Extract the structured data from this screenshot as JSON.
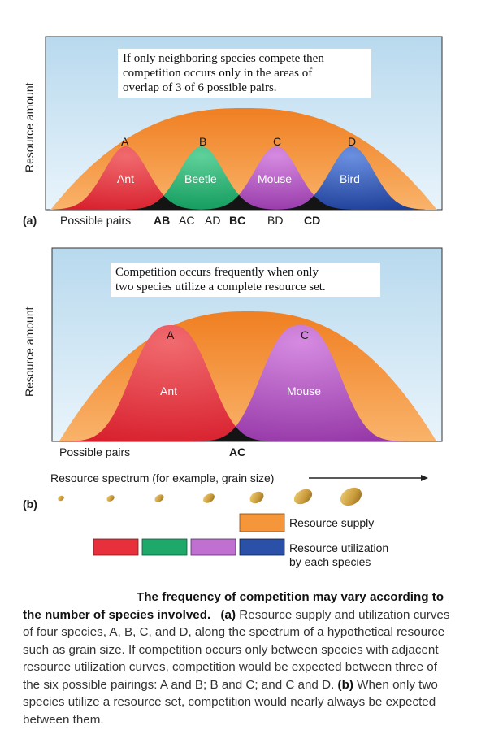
{
  "panel_a": {
    "ylabel": "Resource amount",
    "note_lines": [
      "If only neighboring species compete then",
      "competition occurs only in the areas of",
      "overlap of 3 of 6 possible pairs."
    ],
    "tag": "(a)",
    "pairs_label": "Possible pairs",
    "pairs": [
      "AB",
      "AC",
      "AD",
      "BC",
      "BD",
      "CD"
    ],
    "species": [
      {
        "letter": "A",
        "name": "Ant",
        "color": "#e8303c"
      },
      {
        "letter": "B",
        "name": "Beetle",
        "color": "#1ea86a"
      },
      {
        "letter": "C",
        "name": "Mouse",
        "color": "#a848b8"
      },
      {
        "letter": "D",
        "name": "Bird",
        "color": "#2a50a8"
      }
    ]
  },
  "panel_b": {
    "ylabel": "Resource amount",
    "note_lines": [
      "Competition occurs frequently when only",
      "two species utilize a complete resource set."
    ],
    "tag": "(b)",
    "pairs_label": "Possible pairs",
    "pair": "AC",
    "species": [
      {
        "letter": "A",
        "name": "Ant",
        "color": "#e8303c"
      },
      {
        "letter": "C",
        "name": "Mouse",
        "color": "#a848b8"
      }
    ],
    "spectrum_label": "Resource spectrum (for example, grain size)"
  },
  "legend": {
    "supply": "Resource supply",
    "utilization_lines": [
      "Resource utilization",
      "by each species"
    ],
    "supply_color": "#f5963a",
    "utilization_colors": [
      "#e8303c",
      "#1ea86a",
      "#a848b8",
      "#2a50a8"
    ]
  },
  "caption": {
    "title": "The frequency of competition may vary according to the number of species involved.",
    "a_tag": "(a)",
    "text_a": "Resource supply and utilization curves of four species, A, B, C, and D, along the spectrum of a hypothetical resource such as grain size. If competition occurs only between species with adjacent resource utilization curves, competition would be expected between three of the six possible pairings: A and B; B and C; and C and D.",
    "b_tag": "(b)",
    "text_b": "When only two species utilize a resource set, competition would nearly always be expected between them."
  }
}
